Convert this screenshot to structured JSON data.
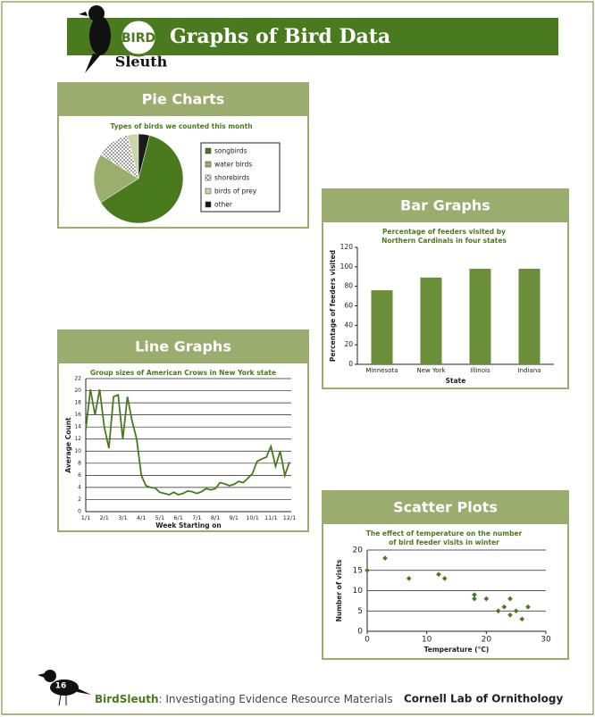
{
  "header": {
    "logo_top": "BIRD",
    "logo_bottom": "Sleuth",
    "title": "Graphs of Bird Data"
  },
  "sections": [
    "Pie Charts",
    "Bar Graphs",
    "Line Graphs",
    "Scatter Plots"
  ],
  "chart_data": [
    {
      "type": "pie",
      "title": "Types of birds we counted this month",
      "categories": [
        "songbirds",
        "water birds",
        "shorebirds",
        "birds of prey",
        "other"
      ],
      "values": [
        62,
        18,
        12,
        4,
        4
      ],
      "colors": [
        "#4a7a1e",
        "#9aae6e",
        "#ffffff",
        "#c9d6a8",
        "#1a1a1a"
      ],
      "hatch": [
        false,
        false,
        true,
        false,
        false
      ]
    },
    {
      "type": "bar",
      "title": [
        "Percentage of feeders visited by",
        "Northern Cardinals in four states"
      ],
      "categories": [
        "Minnesota",
        "New York",
        "Illinois",
        "Indiana"
      ],
      "values": [
        76,
        89,
        98,
        98
      ],
      "color": "#6b8e3a",
      "ylim": [
        0,
        120
      ],
      "yticks": [
        0,
        20,
        40,
        60,
        80,
        100,
        120
      ],
      "ylabel": "Percentage of feeders visited",
      "xlabel": "State",
      "grid": false
    },
    {
      "type": "line",
      "title": "Group sizes of American Crows in New York state",
      "categories": [
        "1/1",
        null,
        null,
        null,
        "2/1",
        null,
        null,
        null,
        "3/1",
        null,
        null,
        null,
        "4/1",
        null,
        null,
        null,
        "5/1",
        null,
        null,
        null,
        "6/1",
        null,
        null,
        null,
        "7/1",
        null,
        null,
        null,
        "8/1",
        null,
        null,
        null,
        "9/1",
        null,
        null,
        null,
        "10/1",
        null,
        null,
        null,
        "11/1",
        null,
        null,
        null,
        "12/1"
      ],
      "values": [
        13.5,
        20.2,
        16,
        20.2,
        14,
        10.5,
        19,
        19.3,
        12,
        19,
        15,
        12,
        6,
        4.3,
        4,
        3.9,
        3.2,
        3,
        2.8,
        3.2,
        2.8,
        3,
        3.4,
        3.3,
        3,
        3.3,
        3.8,
        3.6,
        3.8,
        4.8,
        4.6,
        4.3,
        4.5,
        5,
        4.8,
        5.5,
        6.3,
        8.3,
        8.7,
        9,
        10.8,
        7.5,
        10,
        6,
        8.2
      ],
      "color": "#4a7a1e",
      "ylim": [
        0,
        22
      ],
      "yticks": [
        0,
        2,
        4,
        6,
        8,
        10,
        12,
        14,
        16,
        18,
        20,
        22
      ],
      "ylabel": "Average Count",
      "xlabel": "Week Starting on",
      "grid": true
    },
    {
      "type": "scatter",
      "title": [
        "The effect of temperature on the number",
        "of bird feeder visits in winter"
      ],
      "x": [
        0,
        3,
        7,
        12,
        13,
        18,
        18,
        20,
        22,
        23,
        24,
        24,
        25,
        26,
        27
      ],
      "values": [
        15,
        18,
        13,
        14,
        13,
        9,
        8,
        8,
        5,
        6,
        8,
        4,
        5,
        3,
        6
      ],
      "color": "#4a7a1e",
      "xlim": [
        0,
        30
      ],
      "xticks": [
        0,
        10,
        20,
        30
      ],
      "ylim": [
        0,
        20
      ],
      "yticks": [
        0,
        5,
        10,
        15,
        20
      ],
      "xlabel": "Temperature (°C)",
      "ylabel": "Number of visits",
      "grid": true
    }
  ],
  "footer": {
    "page": "16",
    "brand": "BirdSleuth",
    "subtitle": ": Investigating Evidence Resource Materials",
    "org": "Cornell Lab of Ornithology"
  }
}
